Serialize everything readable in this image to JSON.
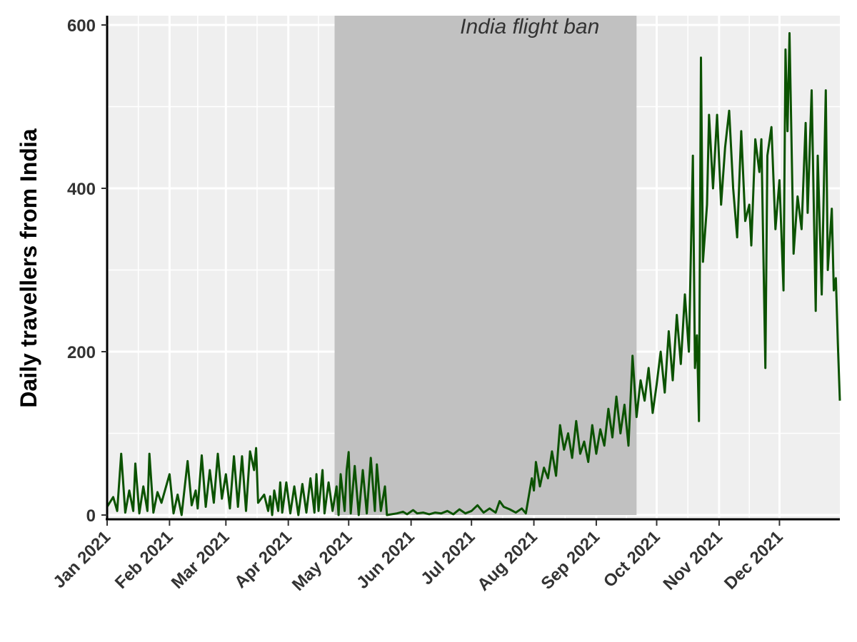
{
  "chart_data": {
    "type": "line",
    "title": "",
    "xlabel": "",
    "ylabel": "Daily travellers from India",
    "ylim": [
      0,
      600
    ],
    "y_ticks": [
      "0",
      "200",
      "400",
      "600"
    ],
    "x_range": [
      "2021-01-01",
      "2021-12-31"
    ],
    "x_ticks": [
      {
        "date": "2021-01-01",
        "label": "Jan 2021"
      },
      {
        "date": "2021-02-01",
        "label": "Feb 2021"
      },
      {
        "date": "2021-03-01",
        "label": "Mar 2021"
      },
      {
        "date": "2021-04-01",
        "label": "Apr 2021"
      },
      {
        "date": "2021-05-01",
        "label": "May 2021"
      },
      {
        "date": "2021-06-01",
        "label": "Jun 2021"
      },
      {
        "date": "2021-07-01",
        "label": "Jul 2021"
      },
      {
        "date": "2021-08-01",
        "label": "Aug 2021"
      },
      {
        "date": "2021-09-01",
        "label": "Sep 2021"
      },
      {
        "date": "2021-10-01",
        "label": "Oct 2021"
      },
      {
        "date": "2021-11-01",
        "label": "Nov 2021"
      },
      {
        "date": "2021-12-01",
        "label": "Dec 2021"
      }
    ],
    "grid": true,
    "colors": {
      "line": "#0b5200",
      "panel": "#efefef",
      "band": "#c1c1c1",
      "grid": "#ffffff"
    },
    "shaded_period": {
      "start": "2021-04-24",
      "end": "2021-09-21",
      "label": "India flight ban"
    },
    "series": [
      {
        "points": [
          [
            "2021-01-01",
            10
          ],
          [
            "2021-01-04",
            22
          ],
          [
            "2021-01-06",
            5
          ],
          [
            "2021-01-08",
            75
          ],
          [
            "2021-01-10",
            3
          ],
          [
            "2021-01-12",
            30
          ],
          [
            "2021-01-14",
            5
          ],
          [
            "2021-01-15",
            63
          ],
          [
            "2021-01-17",
            2
          ],
          [
            "2021-01-19",
            35
          ],
          [
            "2021-01-21",
            5
          ],
          [
            "2021-01-22",
            75
          ],
          [
            "2021-01-24",
            3
          ],
          [
            "2021-01-26",
            28
          ],
          [
            "2021-01-28",
            15
          ],
          [
            "2021-02-01",
            50
          ],
          [
            "2021-02-03",
            2
          ],
          [
            "2021-02-05",
            25
          ],
          [
            "2021-02-07",
            0
          ],
          [
            "2021-02-10",
            66
          ],
          [
            "2021-02-12",
            12
          ],
          [
            "2021-02-14",
            30
          ],
          [
            "2021-02-15",
            8
          ],
          [
            "2021-02-17",
            73
          ],
          [
            "2021-02-19",
            10
          ],
          [
            "2021-02-21",
            55
          ],
          [
            "2021-02-23",
            15
          ],
          [
            "2021-02-25",
            75
          ],
          [
            "2021-02-27",
            20
          ],
          [
            "2021-03-01",
            50
          ],
          [
            "2021-03-03",
            8
          ],
          [
            "2021-03-05",
            72
          ],
          [
            "2021-03-07",
            10
          ],
          [
            "2021-03-09",
            72
          ],
          [
            "2021-03-11",
            5
          ],
          [
            "2021-03-13",
            78
          ],
          [
            "2021-03-15",
            55
          ],
          [
            "2021-03-16",
            82
          ],
          [
            "2021-03-17",
            15
          ],
          [
            "2021-03-20",
            25
          ],
          [
            "2021-03-22",
            5
          ],
          [
            "2021-03-23",
            23
          ],
          [
            "2021-03-24",
            0
          ],
          [
            "2021-03-25",
            30
          ],
          [
            "2021-03-27",
            5
          ],
          [
            "2021-03-28",
            40
          ],
          [
            "2021-03-29",
            3
          ],
          [
            "2021-03-31",
            40
          ],
          [
            "2021-04-02",
            2
          ],
          [
            "2021-04-04",
            35
          ],
          [
            "2021-04-06",
            0
          ],
          [
            "2021-04-08",
            38
          ],
          [
            "2021-04-10",
            3
          ],
          [
            "2021-04-12",
            45
          ],
          [
            "2021-04-14",
            3
          ],
          [
            "2021-04-15",
            50
          ],
          [
            "2021-04-16",
            5
          ],
          [
            "2021-04-18",
            55
          ],
          [
            "2021-04-19",
            2
          ],
          [
            "2021-04-21",
            40
          ],
          [
            "2021-04-23",
            5
          ],
          [
            "2021-04-25",
            35
          ],
          [
            "2021-04-26",
            0
          ],
          [
            "2021-04-27",
            50
          ],
          [
            "2021-04-29",
            5
          ],
          [
            "2021-04-30",
            55
          ],
          [
            "2021-05-01",
            77
          ],
          [
            "2021-05-02",
            2
          ],
          [
            "2021-05-04",
            60
          ],
          [
            "2021-05-06",
            0
          ],
          [
            "2021-05-08",
            55
          ],
          [
            "2021-05-10",
            2
          ],
          [
            "2021-05-12",
            70
          ],
          [
            "2021-05-14",
            5
          ],
          [
            "2021-05-15",
            62
          ],
          [
            "2021-05-17",
            5
          ],
          [
            "2021-05-19",
            35
          ],
          [
            "2021-05-20",
            0
          ],
          [
            "2021-05-25",
            2
          ],
          [
            "2021-05-28",
            4
          ],
          [
            "2021-05-30",
            1
          ],
          [
            "2021-06-02",
            6
          ],
          [
            "2021-06-04",
            2
          ],
          [
            "2021-06-07",
            3
          ],
          [
            "2021-06-10",
            1
          ],
          [
            "2021-06-13",
            3
          ],
          [
            "2021-06-16",
            2
          ],
          [
            "2021-06-19",
            5
          ],
          [
            "2021-06-22",
            1
          ],
          [
            "2021-06-25",
            7
          ],
          [
            "2021-06-28",
            2
          ],
          [
            "2021-07-01",
            5
          ],
          [
            "2021-07-04",
            12
          ],
          [
            "2021-07-07",
            3
          ],
          [
            "2021-07-10",
            8
          ],
          [
            "2021-07-13",
            3
          ],
          [
            "2021-07-15",
            17
          ],
          [
            "2021-07-17",
            10
          ],
          [
            "2021-07-20",
            7
          ],
          [
            "2021-07-23",
            3
          ],
          [
            "2021-07-26",
            8
          ],
          [
            "2021-07-28",
            2
          ],
          [
            "2021-07-31",
            45
          ],
          [
            "2021-08-01",
            30
          ],
          [
            "2021-08-02",
            65
          ],
          [
            "2021-08-04",
            35
          ],
          [
            "2021-08-06",
            58
          ],
          [
            "2021-08-08",
            45
          ],
          [
            "2021-08-10",
            78
          ],
          [
            "2021-08-12",
            48
          ],
          [
            "2021-08-14",
            110
          ],
          [
            "2021-08-16",
            80
          ],
          [
            "2021-08-18",
            100
          ],
          [
            "2021-08-20",
            70
          ],
          [
            "2021-08-22",
            115
          ],
          [
            "2021-08-24",
            75
          ],
          [
            "2021-08-26",
            90
          ],
          [
            "2021-08-28",
            65
          ],
          [
            "2021-08-30",
            110
          ],
          [
            "2021-09-01",
            75
          ],
          [
            "2021-09-03",
            105
          ],
          [
            "2021-09-05",
            85
          ],
          [
            "2021-09-07",
            130
          ],
          [
            "2021-09-09",
            95
          ],
          [
            "2021-09-11",
            145
          ],
          [
            "2021-09-13",
            100
          ],
          [
            "2021-09-15",
            135
          ],
          [
            "2021-09-17",
            85
          ],
          [
            "2021-09-19",
            195
          ],
          [
            "2021-09-21",
            120
          ],
          [
            "2021-09-23",
            165
          ],
          [
            "2021-09-25",
            140
          ],
          [
            "2021-09-27",
            180
          ],
          [
            "2021-09-29",
            125
          ],
          [
            "2021-10-01",
            160
          ],
          [
            "2021-10-03",
            200
          ],
          [
            "2021-10-05",
            150
          ],
          [
            "2021-10-07",
            225
          ],
          [
            "2021-10-09",
            165
          ],
          [
            "2021-10-11",
            245
          ],
          [
            "2021-10-13",
            185
          ],
          [
            "2021-10-15",
            270
          ],
          [
            "2021-10-17",
            200
          ],
          [
            "2021-10-19",
            440
          ],
          [
            "2021-10-20",
            180
          ],
          [
            "2021-10-21",
            220
          ],
          [
            "2021-10-22",
            115
          ],
          [
            "2021-10-23",
            560
          ],
          [
            "2021-10-24",
            310
          ],
          [
            "2021-10-26",
            380
          ],
          [
            "2021-10-27",
            490
          ],
          [
            "2021-10-29",
            400
          ],
          [
            "2021-10-31",
            490
          ],
          [
            "2021-11-02",
            380
          ],
          [
            "2021-11-04",
            450
          ],
          [
            "2021-11-06",
            495
          ],
          [
            "2021-11-08",
            400
          ],
          [
            "2021-11-10",
            340
          ],
          [
            "2021-11-12",
            470
          ],
          [
            "2021-11-14",
            360
          ],
          [
            "2021-11-16",
            380
          ],
          [
            "2021-11-17",
            330
          ],
          [
            "2021-11-19",
            460
          ],
          [
            "2021-11-21",
            420
          ],
          [
            "2021-11-22",
            460
          ],
          [
            "2021-11-24",
            180
          ],
          [
            "2021-11-25",
            440
          ],
          [
            "2021-11-27",
            475
          ],
          [
            "2021-11-29",
            350
          ],
          [
            "2021-12-01",
            410
          ],
          [
            "2021-12-03",
            275
          ],
          [
            "2021-12-04",
            570
          ],
          [
            "2021-12-05",
            470
          ],
          [
            "2021-12-06",
            590
          ],
          [
            "2021-12-08",
            320
          ],
          [
            "2021-12-10",
            390
          ],
          [
            "2021-12-12",
            350
          ],
          [
            "2021-12-14",
            480
          ],
          [
            "2021-12-15",
            370
          ],
          [
            "2021-12-17",
            520
          ],
          [
            "2021-12-19",
            250
          ],
          [
            "2021-12-20",
            440
          ],
          [
            "2021-12-22",
            270
          ],
          [
            "2021-12-24",
            520
          ],
          [
            "2021-12-25",
            300
          ],
          [
            "2021-12-27",
            375
          ],
          [
            "2021-12-28",
            275
          ],
          [
            "2021-12-29",
            290
          ],
          [
            "2021-12-30",
            210
          ],
          [
            "2021-12-31",
            140
          ]
        ]
      }
    ]
  }
}
